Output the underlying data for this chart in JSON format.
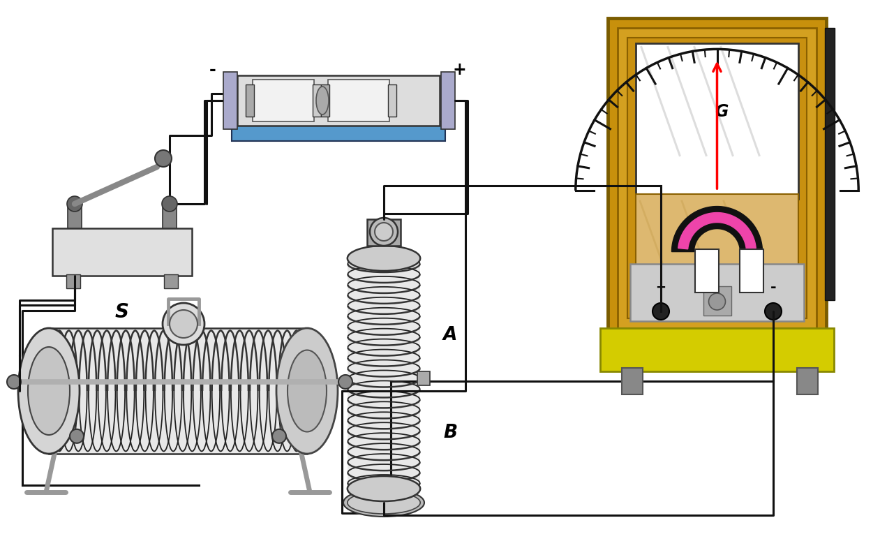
{
  "bg": "#ffffff",
  "wc": "#111111",
  "wlw": 2.2,
  "label_S": "S",
  "label_A": "A",
  "label_B": "B",
  "label_G": "G",
  "bat_tray": "#5599cc",
  "bat_cell": "#e8e8e8",
  "bat_bracket": "#9999bb",
  "galv_frame": "#c8900c",
  "galv_wood": "#d4a020",
  "galv_inner": "#c89010",
  "galv_body": "#ddb870",
  "galv_base": "#d4cc00",
  "magnet_pink": "#ee44aa",
  "sw_base": "#e0e0e0",
  "coil_bg": "#e8e8e8",
  "coil_wire": "#222222"
}
